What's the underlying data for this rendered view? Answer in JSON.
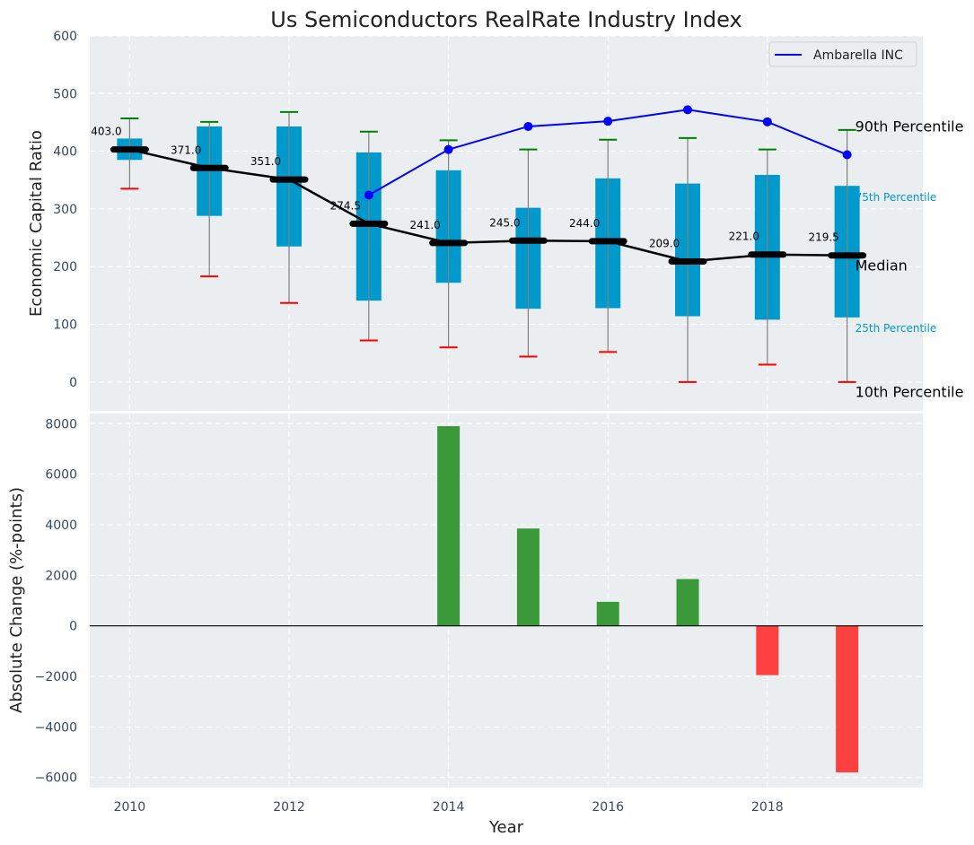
{
  "chart_data": [
    {
      "type": "box",
      "title": "Us Semiconductors RealRate Industry Index",
      "xlabel": "",
      "ylabel": "Economic Capital Ratio",
      "ylim": [
        -50,
        600
      ],
      "yticks": [
        0,
        100,
        200,
        300,
        400,
        500,
        600
      ],
      "grid": true,
      "categories": [
        2010,
        2011,
        2012,
        2013,
        2014,
        2015,
        2016,
        2017,
        2018,
        2019
      ],
      "p10": [
        335,
        183,
        137,
        72,
        60,
        44,
        52,
        0,
        30,
        0
      ],
      "p25": [
        385,
        288,
        235,
        141,
        172,
        127,
        128,
        114,
        108,
        112
      ],
      "median": [
        403.0,
        371.0,
        351.0,
        274.5,
        241.0,
        245.0,
        244.0,
        209.0,
        221.0,
        219.5
      ],
      "median_labels": [
        "403.0",
        "371.0",
        "351.0",
        "274.5",
        "241.0",
        "245.0",
        "244.0",
        "209.0",
        "221.0",
        "219.5"
      ],
      "p75": [
        422,
        443,
        443,
        398,
        367,
        302,
        353,
        344,
        359,
        340
      ],
      "p90": [
        457,
        451,
        468,
        434,
        419,
        403,
        420,
        423,
        403,
        437
      ],
      "series": [
        {
          "name": "Ambarella INC",
          "color": "#0000ff",
          "x": [
            2013,
            2014,
            2015,
            2016,
            2017,
            2018,
            2019
          ],
          "values": [
            324,
            403,
            443,
            452,
            472,
            451,
            394
          ]
        }
      ],
      "legend": {
        "position": "top-right",
        "entries": [
          "Ambarella INC"
        ]
      },
      "annotations": {
        "p90": "90th Percentile",
        "p75": "75th Percentile",
        "median": "Median",
        "p25": "25th Percentile",
        "p10": "10th Percentile"
      },
      "colors": {
        "box": "#0099cc",
        "median": "#000000",
        "p90_cap": "#008000",
        "p10_cap": "#ff0000",
        "whisker": "#808080"
      }
    },
    {
      "type": "bar",
      "xlabel": "Year",
      "ylabel": "Absolute Change (%-points)",
      "ylim": [
        -6400,
        8400
      ],
      "yticks": [
        -6000,
        -4000,
        -2000,
        0,
        2000,
        4000,
        6000,
        8000
      ],
      "xticks": [
        2010,
        2012,
        2014,
        2016,
        2018
      ],
      "xlim": [
        2009.5,
        2019.95
      ],
      "grid": true,
      "categories": [
        2014,
        2015,
        2016,
        2017,
        2018,
        2019
      ],
      "values": [
        7900,
        3850,
        950,
        1850,
        -1950,
        -5800
      ],
      "colors": {
        "positive": "#3a9a3a",
        "negative": "#ff4040"
      }
    }
  ]
}
